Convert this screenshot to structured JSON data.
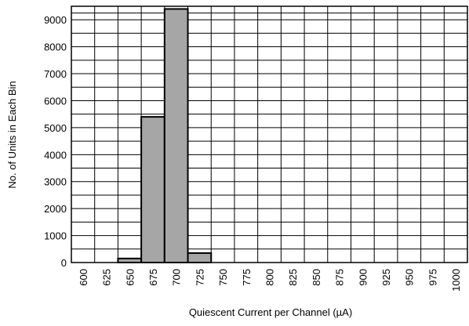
{
  "chart_data": {
    "type": "histogram",
    "xlabel": "Quiescent Current per Channel (µA)",
    "ylabel": "No. of Units in Each Bin",
    "bins": [
      587.5,
      612.5,
      637.5,
      662.5,
      687.5,
      712.5,
      737.5,
      762.5,
      787.5,
      812.5,
      837.5,
      862.5,
      887.5,
      912.5,
      937.5,
      962.5,
      987.5,
      1012.5
    ],
    "values": [
      0,
      0,
      150,
      5400,
      9400,
      350,
      0,
      0,
      0,
      0,
      0,
      0,
      0,
      0,
      0,
      0,
      0
    ],
    "color": "#a6a6a6",
    "xlim": [
      587.5,
      1012.5
    ],
    "xticks": [
      600,
      625,
      650,
      675,
      700,
      725,
      750,
      775,
      800,
      825,
      850,
      875,
      900,
      925,
      950,
      975,
      1000
    ],
    "ylim": [
      0,
      9500
    ],
    "yticks": [
      0,
      1000,
      2000,
      3000,
      4000,
      5000,
      6000,
      7000,
      8000,
      9000
    ],
    "grid": true
  }
}
